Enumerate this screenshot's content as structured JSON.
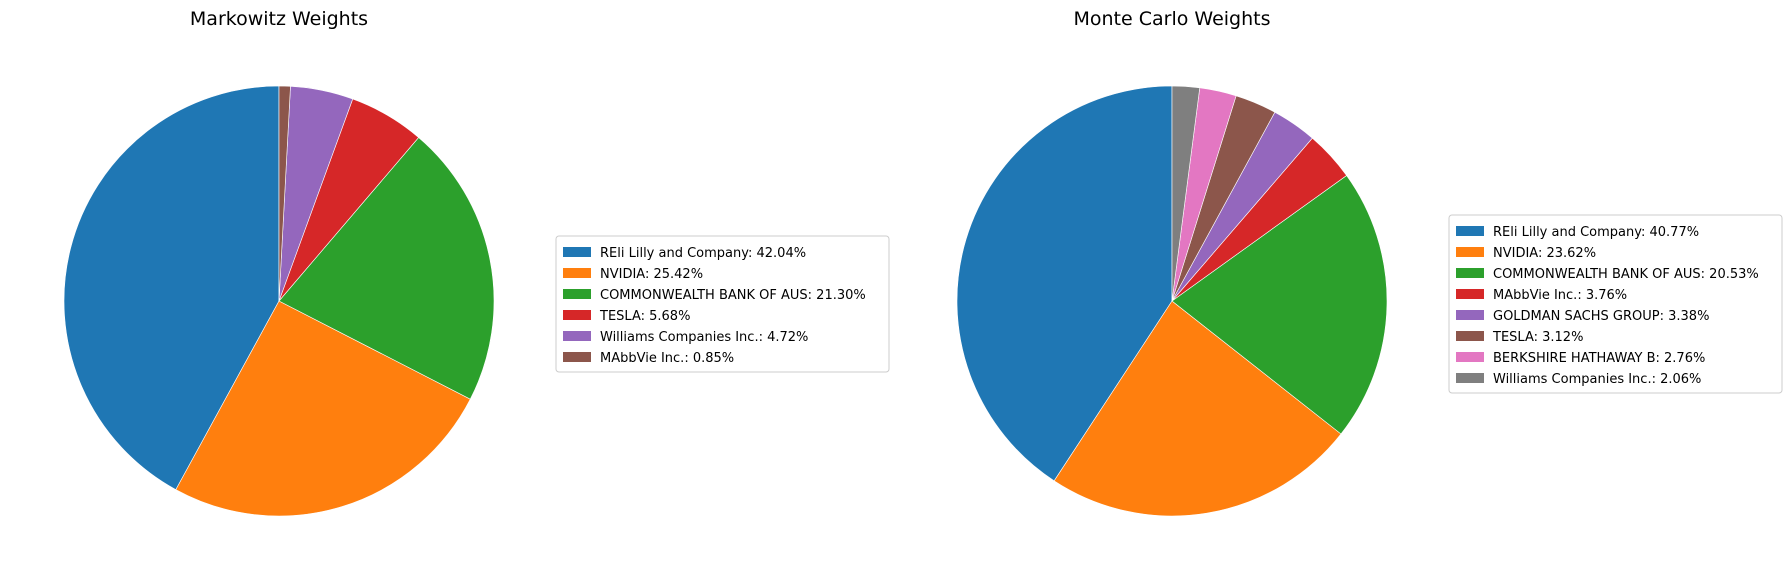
{
  "chart_data": [
    {
      "type": "pie",
      "title": "Markowitz Weights",
      "start_angle_deg": 90,
      "direction": "counterclockwise",
      "legend_placement": "center-right",
      "slices": [
        {
          "label": "REli Lilly and Company",
          "value": 42.04,
          "legend": "REli Lilly and Company: 42.04%",
          "color": "#1f77b4"
        },
        {
          "label": "NVIDIA",
          "value": 25.42,
          "legend": "NVIDIA: 25.42%",
          "color": "#ff7f0e"
        },
        {
          "label": "COMMONWEALTH BANK OF AUS",
          "value": 21.3,
          "legend": "COMMONWEALTH BANK OF AUS: 21.30%",
          "color": "#2ca02c"
        },
        {
          "label": "TESLA",
          "value": 5.68,
          "legend": "TESLA: 5.68%",
          "color": "#d62728"
        },
        {
          "label": "Williams Companies Inc.",
          "value": 4.72,
          "legend": "Williams Companies Inc.: 4.72%",
          "color": "#9467bd"
        },
        {
          "label": "MAbbVie Inc.",
          "value": 0.85,
          "legend": "MAbbVie Inc.: 0.85%",
          "color": "#8c564b"
        }
      ]
    },
    {
      "type": "pie",
      "title": "Monte Carlo Weights",
      "start_angle_deg": 90,
      "direction": "counterclockwise",
      "legend_placement": "center-right",
      "slices": [
        {
          "label": "REli Lilly and Company",
          "value": 40.77,
          "legend": "REli Lilly and Company: 40.77%",
          "color": "#1f77b4"
        },
        {
          "label": "NVIDIA",
          "value": 23.62,
          "legend": "NVIDIA: 23.62%",
          "color": "#ff7f0e"
        },
        {
          "label": "COMMONWEALTH BANK OF AUS",
          "value": 20.53,
          "legend": "COMMONWEALTH BANK OF AUS: 20.53%",
          "color": "#2ca02c"
        },
        {
          "label": "MAbbVie Inc.",
          "value": 3.76,
          "legend": "MAbbVie Inc.: 3.76%",
          "color": "#d62728"
        },
        {
          "label": "GOLDMAN SACHS GROUP",
          "value": 3.38,
          "legend": "GOLDMAN SACHS GROUP: 3.38%",
          "color": "#9467bd"
        },
        {
          "label": "TESLA",
          "value": 3.12,
          "legend": "TESLA: 3.12%",
          "color": "#8c564b"
        },
        {
          "label": "BERKSHIRE HATHAWAY B",
          "value": 2.76,
          "legend": "BERKSHIRE HATHAWAY B: 2.76%",
          "color": "#e377c2"
        },
        {
          "label": "Williams Companies Inc.",
          "value": 2.06,
          "legend": "Williams Companies Inc.: 2.06%",
          "color": "#7f7f7f"
        }
      ]
    }
  ]
}
